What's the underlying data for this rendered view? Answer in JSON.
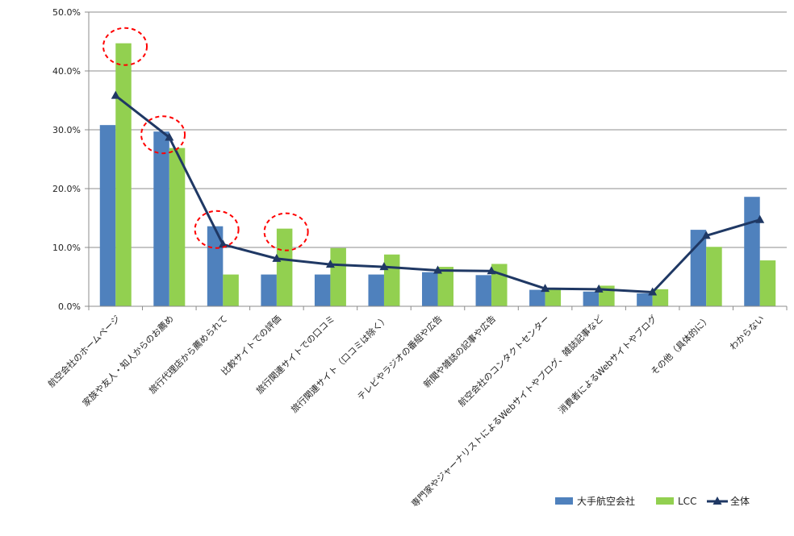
{
  "chart_data": {
    "type": "bar",
    "categories": [
      "航空会社のホームページ",
      "家族や友人・知人からのお薦め",
      "旅行代理店から薦められて",
      "比較サイトでの評価",
      "旅行関連サイトでの口コミ",
      "旅行関連サイト（口コミは除く）",
      "テレビやラジオの番組や広告",
      "新聞や雑誌の記事や広告",
      "航空会社のコンタクトセンター",
      "専門家やジャーナリストによるWebサイトやブログ、雑誌記事など",
      "消費者によるWebサイトやブログ",
      "その他（具体的に）",
      "わからない"
    ],
    "series": [
      {
        "name": "大手航空会社",
        "type": "bar",
        "color": "#4F81BD",
        "values": [
          30.8,
          29.7,
          13.6,
          5.4,
          5.4,
          5.4,
          5.8,
          5.3,
          2.8,
          2.5,
          2.2,
          13.0,
          18.6
        ]
      },
      {
        "name": "LCC",
        "type": "bar",
        "color": "#92D050",
        "values": [
          44.7,
          26.9,
          5.4,
          13.2,
          9.9,
          8.8,
          6.7,
          7.2,
          2.9,
          3.5,
          2.9,
          10.1,
          7.8
        ]
      },
      {
        "name": "全体",
        "type": "line",
        "color": "#1F3864",
        "values": [
          35.8,
          28.7,
          10.5,
          8.1,
          7.1,
          6.7,
          6.1,
          6.0,
          3.0,
          2.9,
          2.4,
          12.0,
          14.7
        ]
      }
    ],
    "ylim": [
      0,
      50
    ],
    "yticks": [
      "0.0%",
      "10.0%",
      "20.0%",
      "30.0%",
      "40.0%",
      "50.0%"
    ],
    "grid": true,
    "legend_position": "bottom-right",
    "highlight_circles": [
      0,
      1,
      2,
      3
    ]
  }
}
